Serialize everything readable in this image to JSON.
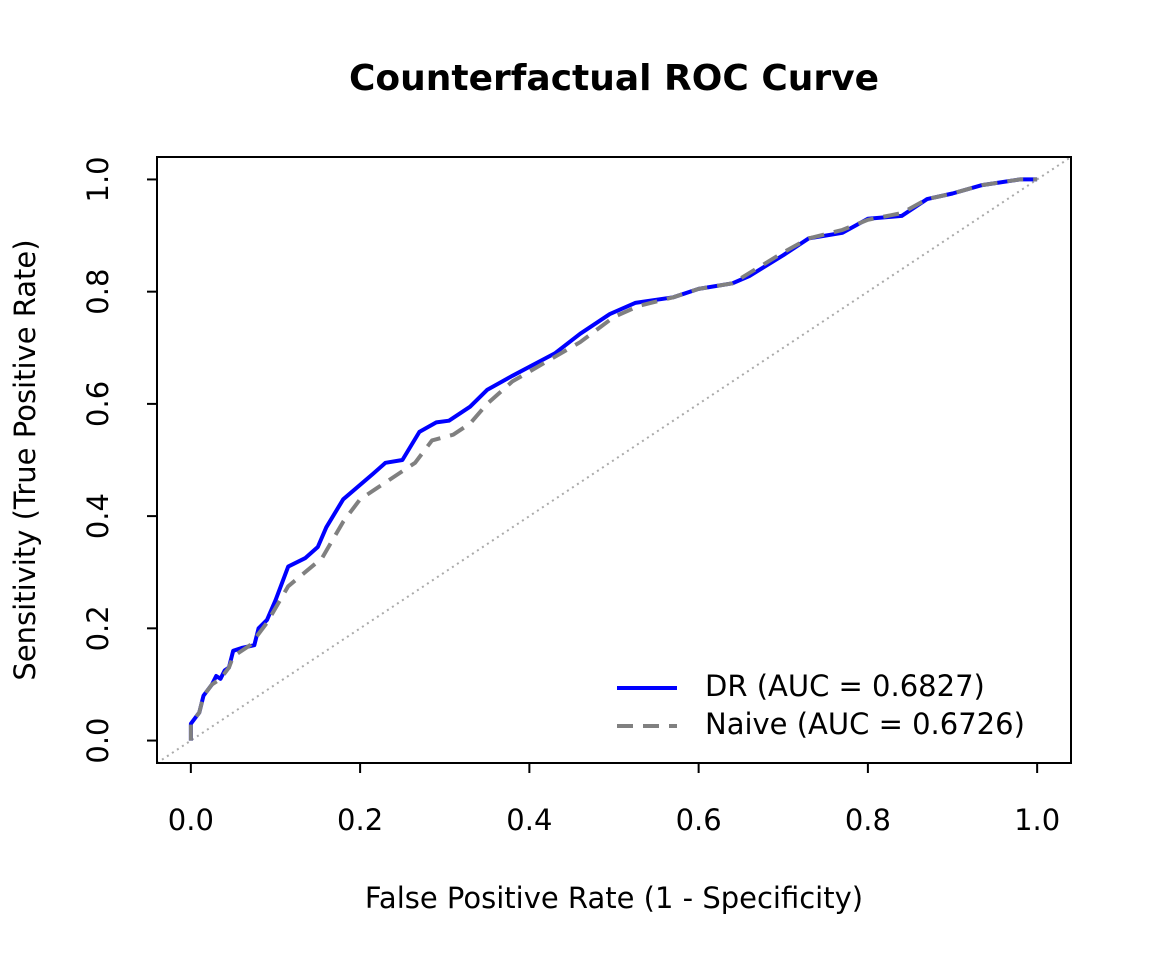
{
  "chart_data": {
    "type": "line",
    "title": "Counterfactual ROC Curve",
    "x_label": "False Positive Rate (1 - Specificity)",
    "y_label": "Sensitivity (True Positive Rate)",
    "xlim": [
      -0.04,
      1.04
    ],
    "ylim": [
      -0.04,
      1.04
    ],
    "xticks": [
      {
        "value": 0,
        "label": "0.0"
      },
      0.2,
      0.4,
      0.6,
      0.8,
      {
        "value": 1,
        "label": "1.0"
      }
    ],
    "yticks": [
      {
        "value": 0,
        "label": "0.0"
      },
      0.2,
      0.4,
      0.6,
      0.8,
      {
        "value": 1,
        "label": "1.0"
      }
    ],
    "legend_position": "bottomright",
    "series": [
      {
        "name": "DR (AUC = 0.6827)",
        "color": "#0000ff",
        "dashed": false,
        "x": [
          0,
          0,
          0.005,
          0.01,
          0.015,
          0.025,
          0.03,
          0.035,
          0.04,
          0.045,
          0.05,
          0.06,
          0.075,
          0.08,
          0.09,
          0.1,
          0.115,
          0.135,
          0.15,
          0.16,
          0.18,
          0.215,
          0.23,
          0.25,
          0.27,
          0.29,
          0.305,
          0.33,
          0.35,
          0.38,
          0.43,
          0.46,
          0.495,
          0.525,
          0.57,
          0.6,
          0.64,
          0.66,
          0.7,
          0.73,
          0.77,
          0.8,
          0.84,
          0.87,
          0.9,
          0.935,
          0.98,
          1
        ],
        "values": [
          0,
          0.03,
          0.04,
          0.05,
          0.08,
          0.1,
          0.115,
          0.11,
          0.125,
          0.13,
          0.16,
          0.165,
          0.17,
          0.2,
          0.215,
          0.25,
          0.31,
          0.325,
          0.345,
          0.38,
          0.43,
          0.475,
          0.495,
          0.5,
          0.55,
          0.567,
          0.57,
          0.595,
          0.625,
          0.65,
          0.69,
          0.725,
          0.76,
          0.78,
          0.79,
          0.805,
          0.815,
          0.828,
          0.865,
          0.895,
          0.905,
          0.93,
          0.935,
          0.965,
          0.975,
          0.99,
          1,
          1
        ]
      },
      {
        "name": "Naive (AUC = 0.6726)",
        "color": "#808080",
        "dashed": true,
        "x": [
          0,
          0,
          0.01,
          0.015,
          0.025,
          0.035,
          0.045,
          0.05,
          0.07,
          0.09,
          0.115,
          0.135,
          0.155,
          0.18,
          0.2,
          0.22,
          0.25,
          0.265,
          0.285,
          0.31,
          0.33,
          0.35,
          0.38,
          0.42,
          0.46,
          0.5,
          0.53,
          0.57,
          0.6,
          0.64,
          0.7,
          0.73,
          0.77,
          0.8,
          0.84,
          0.87,
          0.9,
          0.935,
          0.98,
          1
        ],
        "values": [
          0,
          0.03,
          0.05,
          0.08,
          0.1,
          0.11,
          0.13,
          0.15,
          0.17,
          0.21,
          0.275,
          0.3,
          0.325,
          0.39,
          0.43,
          0.45,
          0.48,
          0.495,
          0.535,
          0.545,
          0.565,
          0.6,
          0.64,
          0.675,
          0.71,
          0.755,
          0.775,
          0.79,
          0.805,
          0.815,
          0.87,
          0.895,
          0.91,
          0.928,
          0.94,
          0.965,
          0.975,
          0.99,
          1,
          1
        ]
      }
    ]
  }
}
